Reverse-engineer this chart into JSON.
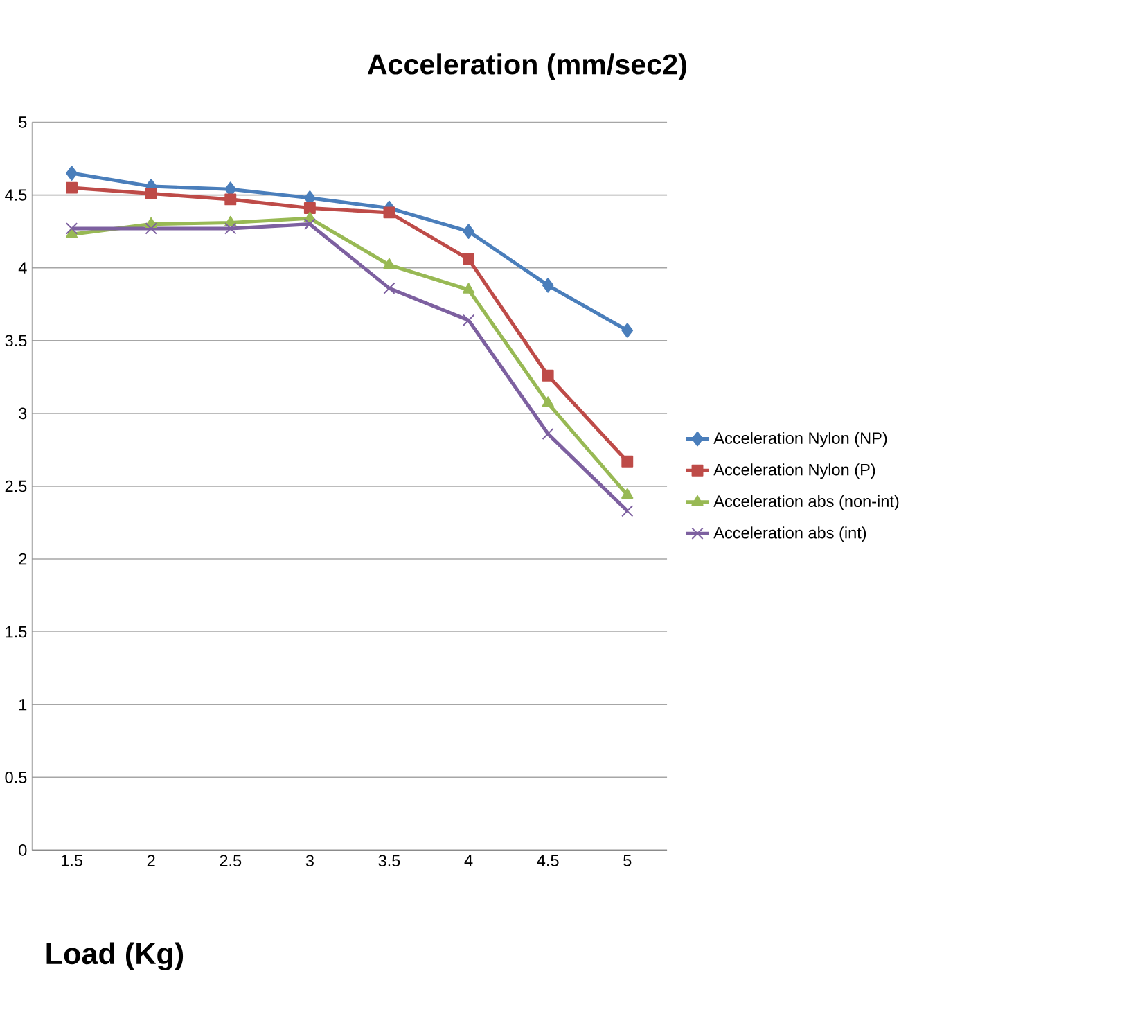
{
  "chart_data": {
    "type": "line",
    "title": "Acceleration (mm/sec2)",
    "xlabel": "Load (Kg)",
    "categories": [
      "1.5",
      "2",
      "2.5",
      "3",
      "3.5",
      "4",
      "4.5",
      "5"
    ],
    "series": [
      {
        "name": "Acceleration Nylon (NP)",
        "color": "#4a7ebb",
        "marker": "diamond",
        "values": [
          4.65,
          4.56,
          4.54,
          4.48,
          4.41,
          4.25,
          3.88,
          3.57
        ]
      },
      {
        "name": "Acceleration Nylon (P)",
        "color": "#be4b48",
        "marker": "square",
        "values": [
          4.55,
          4.51,
          4.47,
          4.41,
          4.38,
          4.06,
          3.26,
          2.67
        ]
      },
      {
        "name": "Acceleration abs (non-int)",
        "color": "#98b954",
        "marker": "triangle",
        "values": [
          4.23,
          4.3,
          4.31,
          4.34,
          4.02,
          3.85,
          3.07,
          2.44
        ]
      },
      {
        "name": "Acceleration abs (int)",
        "color": "#7d60a0",
        "marker": "cross",
        "values": [
          4.27,
          4.27,
          4.27,
          4.3,
          3.86,
          3.64,
          2.86,
          2.33
        ]
      }
    ],
    "ylim": [
      0,
      5
    ],
    "yticks": [
      0,
      0.5,
      1,
      1.5,
      2,
      2.5,
      3,
      3.5,
      4,
      4.5,
      5
    ],
    "grid": "y",
    "legend": "right",
    "line_style": "solid"
  }
}
